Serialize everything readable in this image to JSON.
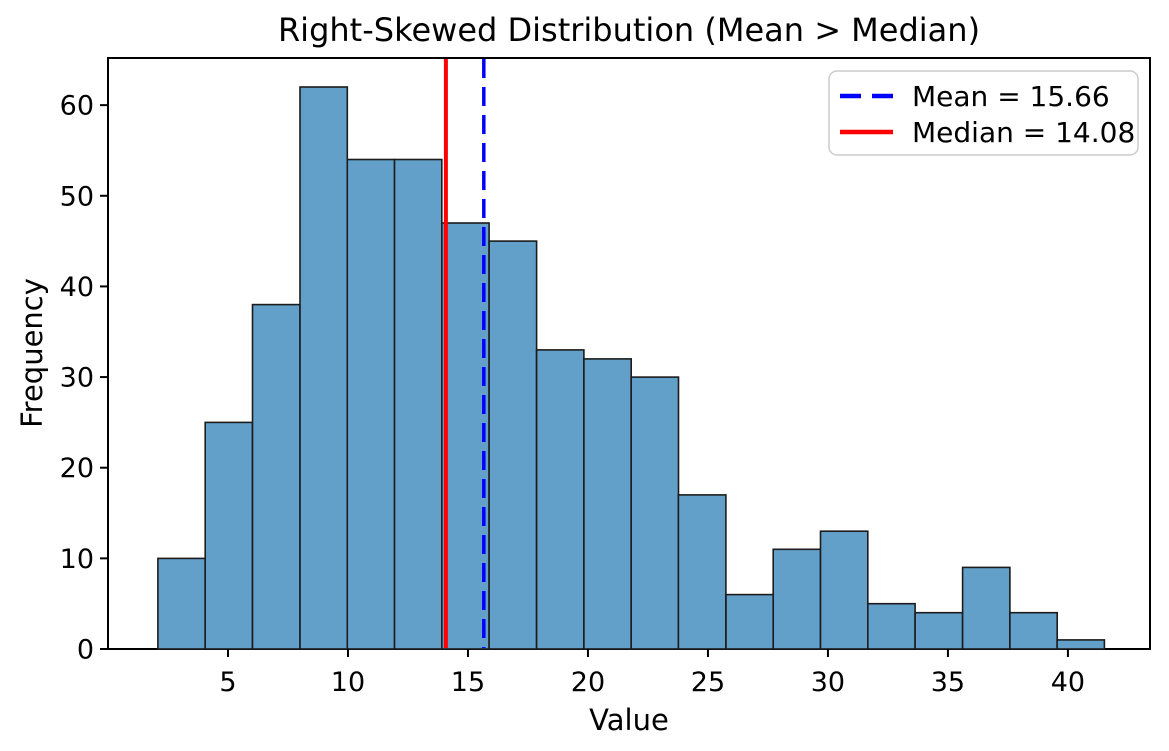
{
  "figure": {
    "background": "#ffffff"
  },
  "chart_data": {
    "type": "bar",
    "subtype": "histogram",
    "title": "Right-Skewed Distribution (Mean > Median)",
    "xlabel": "Value",
    "ylabel": "Frequency",
    "bin_edges": [
      2.08,
      4.05,
      6.02,
      8.0,
      9.97,
      11.94,
      13.91,
      15.88,
      17.86,
      19.83,
      21.8,
      23.77,
      25.75,
      27.72,
      29.69,
      31.66,
      33.63,
      35.61,
      37.58,
      39.55,
      41.52
    ],
    "frequencies": [
      10,
      25,
      38,
      62,
      54,
      54,
      47,
      45,
      33,
      32,
      30,
      17,
      6,
      11,
      13,
      5,
      4,
      9,
      4,
      1
    ],
    "x_ticks": [
      5,
      10,
      15,
      20,
      25,
      30,
      35,
      40
    ],
    "y_ticks": [
      0,
      10,
      20,
      30,
      40,
      50,
      60
    ],
    "xlim": [
      0,
      43.42
    ],
    "ylim": [
      0,
      65.2
    ],
    "grid": false,
    "legend_position": "upper right",
    "annotations": {
      "mean": {
        "value": 15.66,
        "label": "Mean = 15.66",
        "color": "#0000ff",
        "style": "dashed"
      },
      "median": {
        "value": 14.08,
        "label": "Median = 14.08",
        "color": "#ff0000",
        "style": "solid"
      }
    },
    "legend": [
      {
        "label": "Mean = 15.66",
        "color": "#0000ff",
        "style": "dashed"
      },
      {
        "label": "Median = 14.08",
        "color": "#ff0000",
        "style": "solid"
      }
    ],
    "colors": {
      "bar_fill": "#62a0ca",
      "bar_edge": "#1c1c1c",
      "spine": "#000000",
      "legend_border": "#cccccc"
    }
  }
}
